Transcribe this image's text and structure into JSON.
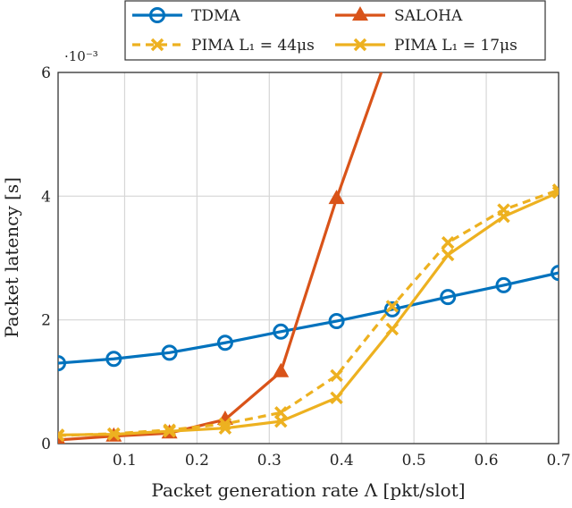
{
  "chart_data": {
    "type": "line",
    "xlabel": "Packet generation rate Λ [pkt/slot]",
    "ylabel": "Packet latency [s]",
    "y_multiplier": "·10⁻³",
    "xlim": [
      0.008,
      0.7
    ],
    "ylim": [
      0,
      6
    ],
    "xticks": [
      "0.1",
      "0.2",
      "0.3",
      "0.4",
      "0.5",
      "0.6",
      "0.7"
    ],
    "yticks": [
      "0",
      "2",
      "4",
      "6"
    ],
    "grid": true,
    "legend_position": "top",
    "x": [
      0.008,
      0.085,
      0.162,
      0.239,
      0.316,
      0.393,
      0.47,
      0.547,
      0.624,
      0.7
    ],
    "series": [
      {
        "name": "TDMA",
        "color": "#0072bd",
        "marker": "circle",
        "dash": false,
        "values": [
          1.3,
          1.37,
          1.47,
          1.63,
          1.81,
          1.98,
          2.17,
          2.37,
          2.56,
          2.76
        ]
      },
      {
        "name": "SALOHA",
        "color": "#d95319",
        "marker": "triangle",
        "dash": false,
        "values": [
          0.06,
          0.12,
          0.17,
          0.39,
          1.16,
          3.96,
          6.5,
          null,
          null,
          null
        ]
      },
      {
        "name": "PIMA L₁ = 44μs",
        "color": "#edb120",
        "marker": "x",
        "dash": true,
        "values": [
          0.13,
          0.16,
          0.22,
          0.32,
          0.5,
          1.1,
          2.22,
          3.25,
          3.78,
          4.1
        ]
      },
      {
        "name": "PIMA L₁ = 17μs",
        "color": "#edb120",
        "marker": "x",
        "dash": false,
        "values": [
          0.14,
          0.15,
          0.2,
          0.25,
          0.36,
          0.74,
          1.85,
          3.05,
          3.67,
          4.06
        ]
      }
    ]
  }
}
